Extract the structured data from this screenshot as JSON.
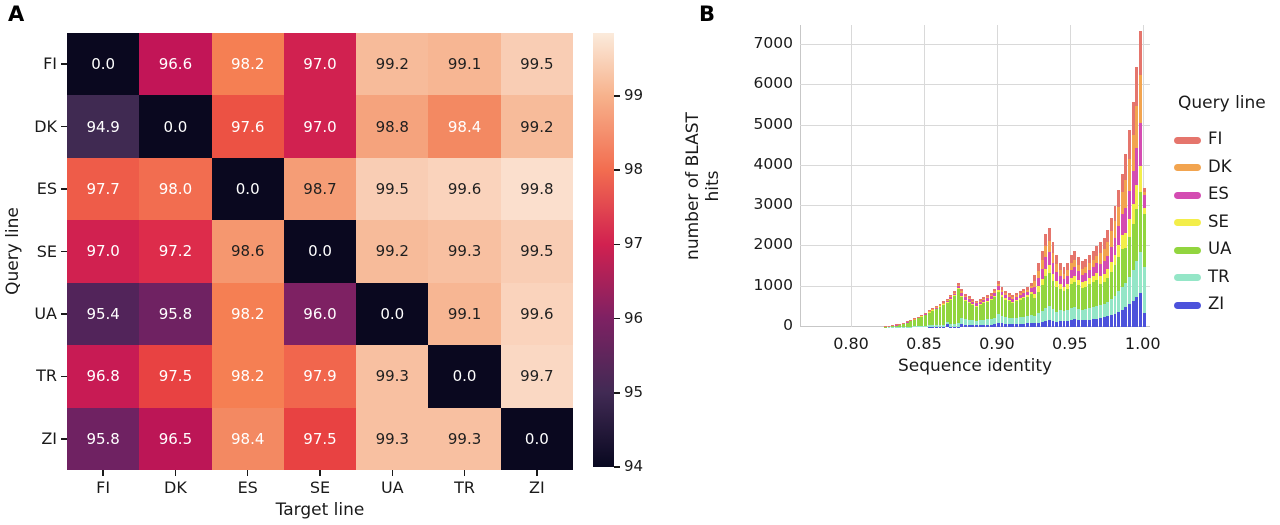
{
  "figure": {
    "panel_a_label": "A",
    "panel_b_label": "B"
  },
  "chart_data": [
    {
      "type": "heatmap",
      "panel": "A",
      "title": "",
      "xlabel": "Target line",
      "ylabel": "Query line",
      "x_categories": [
        "FI",
        "DK",
        "ES",
        "SE",
        "UA",
        "TR",
        "ZI"
      ],
      "y_categories": [
        "FI",
        "DK",
        "ES",
        "SE",
        "UA",
        "TR",
        "ZI"
      ],
      "values": [
        [
          0.0,
          96.6,
          98.2,
          97.0,
          99.2,
          99.1,
          99.5
        ],
        [
          94.9,
          0.0,
          97.6,
          97.0,
          98.8,
          98.4,
          99.2
        ],
        [
          97.7,
          98.0,
          0.0,
          98.7,
          99.5,
          99.6,
          99.8
        ],
        [
          97.0,
          97.2,
          98.6,
          0.0,
          99.2,
          99.3,
          99.5
        ],
        [
          95.4,
          95.8,
          98.2,
          96.0,
          0.0,
          99.1,
          99.6
        ],
        [
          96.8,
          97.5,
          98.2,
          97.9,
          99.3,
          0.0,
          99.7
        ],
        [
          95.8,
          96.5,
          98.4,
          97.5,
          99.3,
          99.3,
          0.0
        ]
      ],
      "vmin": 94,
      "vmax": 99.85,
      "colorbar_ticks": [
        "99",
        "98",
        "97",
        "96",
        "95",
        "94"
      ],
      "colorbar_tick_values": [
        99,
        98,
        97,
        96,
        95,
        94
      ],
      "cell_colors": {
        "0.0": "#0a081f",
        "94.9": "#402a52",
        "95.4": "#52245a",
        "95.8": "#6f2262",
        "96.0": "#7e2163",
        "96.5": "#bc1656",
        "96.6": "#c21557",
        "96.8": "#c81b54",
        "97.0": "#d12150",
        "97.2": "#dd2c4b",
        "97.5": "#e84242",
        "97.6": "#ec5244",
        "97.7": "#ee5c49",
        "97.9": "#f1664d",
        "98.0": "#f26d50",
        "98.2": "#f57f53",
        "98.4": "#f38962",
        "98.6": "#f5976f",
        "98.7": "#f59d76",
        "98.8": "#f5a37d",
        "99.1": "#f7b693",
        "99.2": "#f7bb9a",
        "99.3": "#f8c0a1",
        "99.5": "#f9cdb4",
        "99.6": "#fad3bc",
        "99.7": "#fad8c3",
        "99.8": "#fbdfcd"
      },
      "dark_text_threshold": 98.5,
      "text_color_light": "#ffffff",
      "text_color_dark": "#1f1f1f",
      "colorbar_gradient": [
        {
          "pos": 0.0,
          "color": "#080820"
        },
        {
          "pos": 0.171,
          "color": "#412a54"
        },
        {
          "pos": 0.342,
          "color": "#7e2163"
        },
        {
          "pos": 0.513,
          "color": "#d12150"
        },
        {
          "pos": 0.684,
          "color": "#f26d50"
        },
        {
          "pos": 0.855,
          "color": "#f7b28c"
        },
        {
          "pos": 1.0,
          "color": "#fbebdc"
        }
      ]
    },
    {
      "type": "bar",
      "stacked": true,
      "panel": "B",
      "title": "",
      "xlabel": "Sequence identity",
      "ylabel": "number of BLAST hits",
      "legend_title": "Query line",
      "xlim": [
        0.765,
        1.005
      ],
      "ylim": [
        0,
        7500
      ],
      "x_ticks": [
        "0.80",
        "0.85",
        "0.90",
        "0.95",
        "1.00"
      ],
      "x_tick_values": [
        0.8,
        0.85,
        0.9,
        0.95,
        1.0
      ],
      "y_ticks": [
        0,
        1000,
        2000,
        3000,
        4000,
        5000,
        6000,
        7000
      ],
      "grid": true,
      "legend_position": "right",
      "bin_start": 0.8225,
      "bin_width": 0.0025,
      "stack_order_bottom_to_top": [
        "ZI",
        "TR",
        "UA",
        "SE",
        "ES",
        "DK",
        "FI"
      ],
      "series": [
        {
          "name": "FI",
          "color": "#e5756c",
          "values": [
            1,
            1,
            2,
            3,
            4,
            6,
            7,
            9,
            11,
            13,
            16,
            18,
            21,
            24,
            26,
            29,
            32,
            35,
            40,
            45,
            55,
            57,
            49,
            46,
            42,
            39,
            42,
            45,
            48,
            51,
            57,
            81,
            70,
            63,
            60,
            56,
            60,
            63,
            67,
            70,
            77,
            169,
            208,
            247,
            299,
            319,
            273,
            234,
            192,
            180,
            192,
            216,
            228,
            210,
            198,
            204,
            216,
            228,
            240,
            252,
            264,
            288,
            324,
            360,
            408,
            456,
            645,
            735,
            840,
            968,
            1103,
            104
          ]
        },
        {
          "name": "DK",
          "color": "#f2a44f",
          "values": [
            0,
            1,
            1,
            1,
            2,
            2,
            3,
            4,
            4,
            5,
            6,
            7,
            8,
            9,
            10,
            12,
            13,
            14,
            16,
            18,
            22,
            38,
            33,
            30,
            28,
            26,
            28,
            30,
            32,
            34,
            38,
            58,
            50,
            45,
            43,
            40,
            43,
            45,
            48,
            50,
            55,
            143,
            176,
            209,
            253,
            270,
            231,
            198,
            144,
            135,
            144,
            162,
            171,
            158,
            149,
            153,
            162,
            171,
            180,
            294,
            308,
            336,
            378,
            420,
            476,
            532,
            688,
            784,
            896,
            1032,
            1176,
            69
          ]
        },
        {
          "name": "ES",
          "color": "#d44cb2",
          "values": [
            1,
            1,
            2,
            2,
            3,
            4,
            6,
            7,
            9,
            10,
            12,
            14,
            21,
            24,
            26,
            29,
            32,
            35,
            40,
            45,
            55,
            76,
            66,
            61,
            56,
            52,
            56,
            60,
            64,
            68,
            76,
            104,
            90,
            81,
            76,
            72,
            76,
            81,
            86,
            90,
            99,
            169,
            208,
            247,
            299,
            319,
            273,
            234,
            192,
            180,
            192,
            216,
            228,
            210,
            198,
            204,
            216,
            228,
            240,
            294,
            308,
            336,
            378,
            420,
            476,
            532,
            624,
            711,
            812,
            935,
            1066,
            311
          ]
        },
        {
          "name": "SE",
          "color": "#f3ee4a",
          "values": [
            0,
            0,
            0,
            1,
            1,
            1,
            1,
            2,
            2,
            3,
            3,
            4,
            4,
            5,
            5,
            6,
            6,
            7,
            8,
            9,
            11,
            29,
            25,
            23,
            21,
            20,
            21,
            22,
            24,
            26,
            29,
            46,
            40,
            36,
            34,
            32,
            34,
            36,
            38,
            40,
            44,
            104,
            128,
            152,
            184,
            196,
            168,
            144,
            128,
            120,
            128,
            144,
            152,
            140,
            132,
            136,
            144,
            152,
            160,
            189,
            198,
            216,
            243,
            270,
            306,
            342,
            387,
            441,
            504,
            581,
            662,
            173
          ]
        },
        {
          "name": "UA",
          "color": "#92d53f",
          "values": [
            12,
            20,
            33,
            49,
            66,
            90,
            115,
            148,
            180,
            213,
            254,
            295,
            328,
            367,
            406,
            452,
            499,
            470,
            624,
            702,
            858,
            522,
            451,
            418,
            385,
            358,
            385,
            413,
            440,
            468,
            522,
            552,
            480,
            432,
            408,
            384,
            408,
            432,
            456,
            480,
            528,
            442,
            544,
            646,
            782,
            833,
            714,
            612,
            528,
            495,
            528,
            594,
            627,
            578,
            545,
            561,
            594,
            627,
            660,
            525,
            550,
            600,
            675,
            750,
            850,
            950,
            860,
            980,
            1120,
            1290,
            1470,
            1311
          ]
        },
        {
          "name": "TR",
          "color": "#94e6c7",
          "values": [
            1,
            2,
            2,
            4,
            5,
            7,
            8,
            11,
            13,
            16,
            19,
            22,
            34,
            38,
            42,
            46,
            51,
            56,
            64,
            72,
            88,
            162,
            139,
            129,
            119,
            110,
            119,
            128,
            136,
            144,
            162,
            207,
            180,
            162,
            153,
            144,
            153,
            162,
            171,
            180,
            198,
            182,
            224,
            266,
            322,
            343,
            294,
            252,
            256,
            240,
            256,
            288,
            304,
            280,
            264,
            272,
            288,
            304,
            320,
            315,
            330,
            360,
            405,
            450,
            510,
            570,
            602,
            686,
            784,
            903,
            1029,
            1139
          ]
        },
        {
          "name": "ZI",
          "color": "#4c52db",
          "values": [
            0,
            0,
            0,
            0,
            0,
            0,
            0,
            0,
            0,
            0,
            0,
            0,
            4,
            5,
            5,
            6,
            6,
            80,
            8,
            9,
            11,
            66,
            57,
            53,
            49,
            46,
            49,
            52,
            56,
            60,
            66,
            104,
            90,
            81,
            76,
            72,
            76,
            81,
            86,
            90,
            99,
            91,
            112,
            133,
            161,
            172,
            147,
            126,
            160,
            150,
            160,
            180,
            190,
            175,
            165,
            170,
            180,
            190,
            200,
            231,
            242,
            264,
            297,
            330,
            374,
            418,
            495,
            564,
            644,
            742,
            845,
            345
          ]
        }
      ]
    }
  ]
}
